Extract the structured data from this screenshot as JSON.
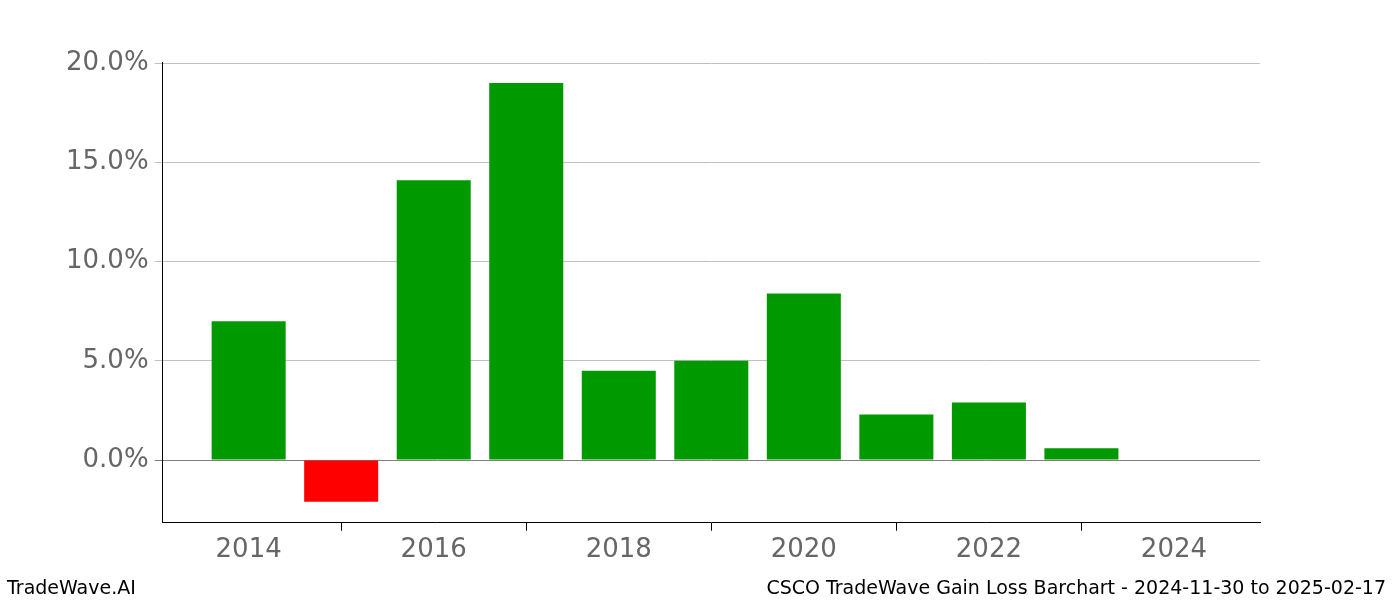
{
  "chart_data": {
    "type": "bar",
    "title": "CSCO TradeWave Gain Loss Barchart - 2024-11-30 to 2025-02-17",
    "source": "TradeWave.AI",
    "x": [
      2014,
      2015,
      2016,
      2017,
      2018,
      2019,
      2020,
      2021,
      2022,
      2023
    ],
    "values": [
      7.0,
      -2.1,
      14.1,
      19.0,
      4.5,
      5.0,
      8.4,
      2.3,
      2.9,
      0.6
    ],
    "colors": [
      "#009900",
      "#ff0000",
      "#009900",
      "#009900",
      "#009900",
      "#009900",
      "#009900",
      "#009900",
      "#009900",
      "#009900"
    ],
    "xlim": [
      2013.07,
      2024.93
    ],
    "xticks": [
      2014,
      2016,
      2018,
      2020,
      2022,
      2024
    ],
    "ylim": [
      -3.16,
      20.06
    ],
    "yticks": [
      {
        "value": 0,
        "label": "0.0%"
      },
      {
        "value": 5,
        "label": "5.0%"
      },
      {
        "value": 10,
        "label": "10.0%"
      },
      {
        "value": 15,
        "label": "15.0%"
      },
      {
        "value": 20,
        "label": "20.0%"
      }
    ],
    "grid": true
  }
}
